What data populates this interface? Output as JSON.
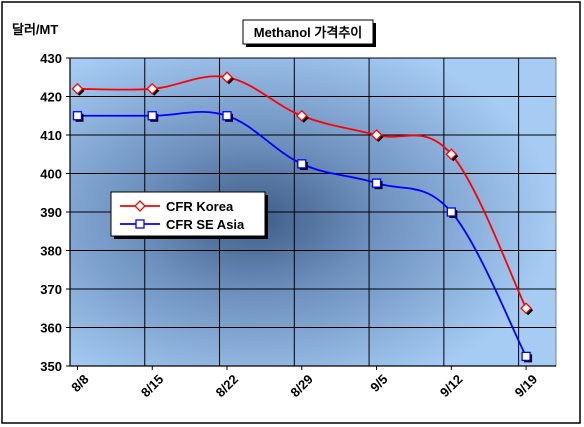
{
  "chart_data": {
    "type": "line",
    "title": "Methanol 가격추이",
    "ylabel": "달러/MT",
    "categories": [
      "8/8",
      "8/15",
      "8/22",
      "8/29",
      "9/5",
      "9/12",
      "9/19"
    ],
    "ylim": [
      350,
      430
    ],
    "yticks": [
      350,
      360,
      370,
      380,
      390,
      400,
      410,
      420,
      430
    ],
    "grid": true,
    "legend_position": "middle-left",
    "series": [
      {
        "name": "CFR Korea",
        "color": "#ff0000",
        "marker": "diamond",
        "values": [
          422,
          422,
          425,
          415,
          410,
          405,
          365
        ]
      },
      {
        "name": "CFR SE Asia",
        "color": "#0000ff",
        "marker": "square",
        "values": [
          415,
          415,
          415,
          402.5,
          397.5,
          390,
          352.5
        ]
      }
    ]
  }
}
